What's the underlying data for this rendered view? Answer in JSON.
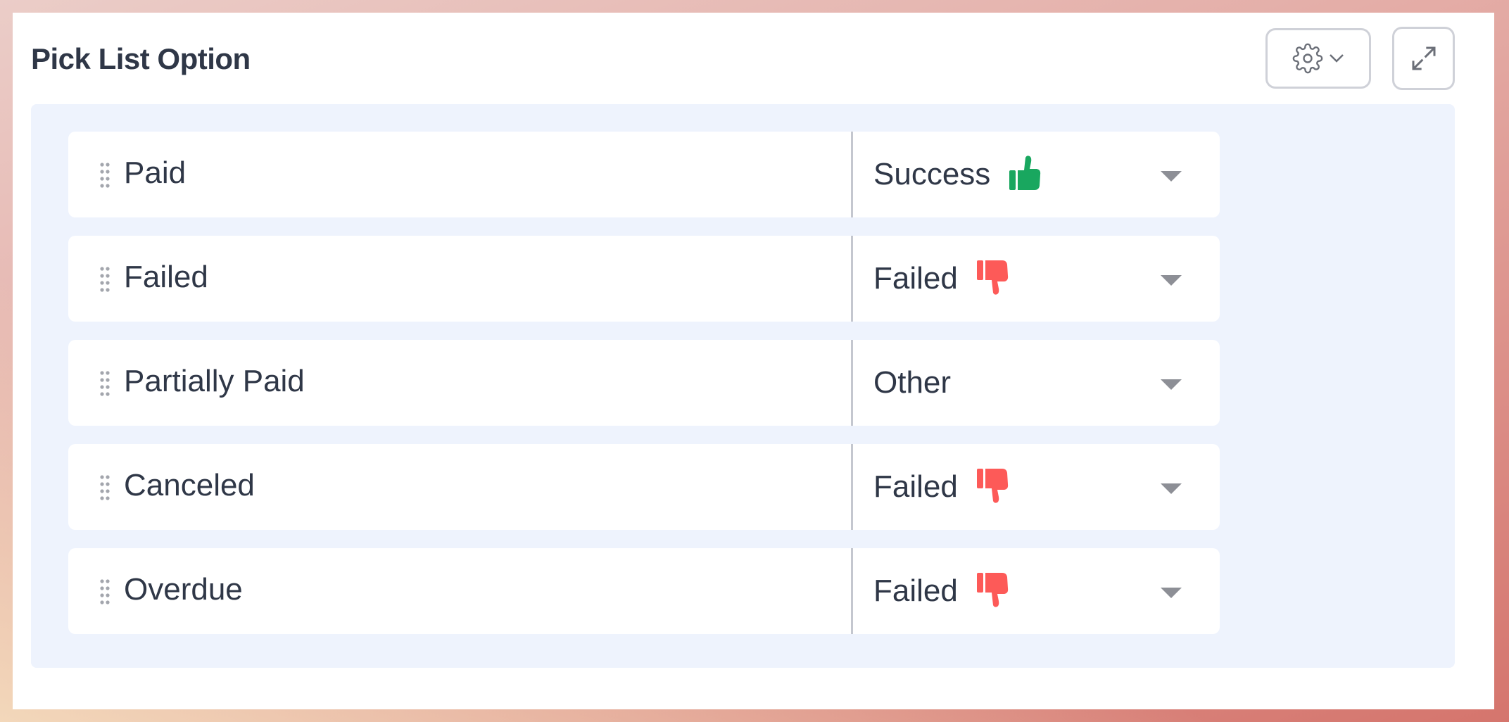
{
  "widget": {
    "title": "Pick List Option",
    "settings_icon": "gear-icon",
    "expand_icon": "expand-icon"
  },
  "colors": {
    "success": "#19a75f",
    "failed": "#fd5a58",
    "panel": "#eef3fd"
  },
  "options": [
    {
      "label": "Paid",
      "status": "Success",
      "icon": "thumbs-up"
    },
    {
      "label": "Failed",
      "status": "Failed",
      "icon": "thumbs-down"
    },
    {
      "label": "Partially Paid",
      "status": "Other",
      "icon": ""
    },
    {
      "label": "Canceled",
      "status": "Failed",
      "icon": "thumbs-down"
    },
    {
      "label": "Overdue",
      "status": "Failed",
      "icon": "thumbs-down"
    }
  ]
}
